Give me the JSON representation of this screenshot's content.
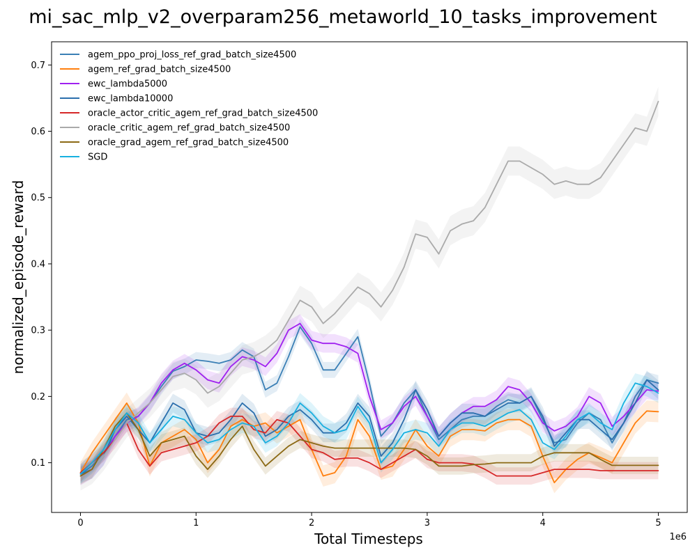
{
  "chart_data": {
    "type": "line",
    "title": "mi_sac_mlp_v2_overparam256_metaworld_10_tasks_improvement",
    "xlabel": "Total Timesteps",
    "ylabel": "normalized_episode_reward",
    "x_offset_label": "1e6",
    "xlim": [
      -0.25,
      5.25
    ],
    "ylim": [
      0.025,
      0.735
    ],
    "xticks": [
      0,
      1,
      2,
      3,
      4,
      5
    ],
    "xtick_labels": [
      "0",
      "1",
      "2",
      "3",
      "4",
      "5"
    ],
    "yticks": [
      0.1,
      0.2,
      0.3,
      0.4,
      0.5,
      0.6,
      0.7
    ],
    "ytick_labels": [
      "0.1",
      "0.2",
      "0.3",
      "0.4",
      "0.5",
      "0.6",
      "0.7"
    ],
    "grid": false,
    "legend_position": "top-left",
    "x": [
      0,
      0.1,
      0.2,
      0.3,
      0.4,
      0.5,
      0.6,
      0.7,
      0.8,
      0.9,
      1.0,
      1.1,
      1.2,
      1.3,
      1.4,
      1.5,
      1.6,
      1.7,
      1.8,
      1.9,
      2.0,
      2.1,
      2.2,
      2.3,
      2.4,
      2.5,
      2.6,
      2.7,
      2.8,
      2.9,
      3.0,
      3.1,
      3.2,
      3.3,
      3.4,
      3.5,
      3.6,
      3.7,
      3.8,
      3.9,
      4.0,
      4.1,
      4.2,
      4.3,
      4.4,
      4.5,
      4.6,
      4.7,
      4.8,
      4.9,
      5.0
    ],
    "series": [
      {
        "name": "agem_ppo_proj_loss_ref_grad_batch_size4500",
        "color": "#3a7fb5",
        "band": 0.012,
        "values": [
          0.083,
          0.095,
          0.115,
          0.14,
          0.165,
          0.17,
          0.19,
          0.215,
          0.238,
          0.245,
          0.255,
          0.253,
          0.25,
          0.255,
          0.27,
          0.26,
          0.21,
          0.22,
          0.26,
          0.305,
          0.28,
          0.24,
          0.24,
          0.265,
          0.29,
          0.22,
          0.14,
          0.16,
          0.19,
          0.21,
          0.17,
          0.135,
          0.15,
          0.165,
          0.17,
          0.17,
          0.185,
          0.195,
          0.19,
          0.2,
          0.165,
          0.13,
          0.135,
          0.16,
          0.175,
          0.165,
          0.13,
          0.16,
          0.2,
          0.225,
          0.22
        ]
      },
      {
        "name": "agem_ref_grad_batch_size4500",
        "color": "#ff7f0e",
        "band": 0.016,
        "values": [
          0.085,
          0.115,
          0.14,
          0.165,
          0.19,
          0.16,
          0.095,
          0.13,
          0.14,
          0.15,
          0.135,
          0.1,
          0.12,
          0.155,
          0.165,
          0.155,
          0.16,
          0.145,
          0.155,
          0.165,
          0.12,
          0.08,
          0.085,
          0.11,
          0.165,
          0.14,
          0.09,
          0.095,
          0.12,
          0.15,
          0.125,
          0.11,
          0.14,
          0.15,
          0.15,
          0.148,
          0.16,
          0.165,
          0.165,
          0.155,
          0.11,
          0.07,
          0.09,
          0.105,
          0.115,
          0.108,
          0.1,
          0.13,
          0.16,
          0.178,
          0.177
        ]
      },
      {
        "name": "ewc_lambda5000",
        "color": "#a020f0",
        "band": 0.014,
        "values": [
          0.08,
          0.09,
          0.11,
          0.14,
          0.16,
          0.17,
          0.19,
          0.22,
          0.24,
          0.25,
          0.24,
          0.225,
          0.22,
          0.245,
          0.26,
          0.255,
          0.245,
          0.265,
          0.3,
          0.31,
          0.285,
          0.28,
          0.28,
          0.275,
          0.265,
          0.2,
          0.15,
          0.16,
          0.185,
          0.2,
          0.17,
          0.14,
          0.16,
          0.175,
          0.185,
          0.185,
          0.195,
          0.215,
          0.21,
          0.19,
          0.16,
          0.148,
          0.155,
          0.17,
          0.2,
          0.19,
          0.155,
          0.17,
          0.19,
          0.21,
          0.208
        ]
      },
      {
        "name": "ewc_lambda10000",
        "color": "#2b6fad",
        "band": 0.014,
        "values": [
          0.083,
          0.09,
          0.11,
          0.15,
          0.17,
          0.15,
          0.13,
          0.16,
          0.19,
          0.18,
          0.145,
          0.14,
          0.145,
          0.165,
          0.19,
          0.175,
          0.14,
          0.15,
          0.17,
          0.18,
          0.165,
          0.145,
          0.145,
          0.16,
          0.19,
          0.17,
          0.11,
          0.13,
          0.165,
          0.21,
          0.18,
          0.14,
          0.16,
          0.175,
          0.175,
          0.17,
          0.18,
          0.19,
          0.19,
          0.2,
          0.17,
          0.125,
          0.145,
          0.165,
          0.165,
          0.15,
          0.135,
          0.16,
          0.19,
          0.225,
          0.21
        ]
      },
      {
        "name": "oracle_actor_critic_agem_ref_grad_batch_size4500",
        "color": "#d62728",
        "band": 0.013,
        "values": [
          0.085,
          0.1,
          0.115,
          0.135,
          0.16,
          0.12,
          0.095,
          0.115,
          0.12,
          0.125,
          0.13,
          0.14,
          0.16,
          0.17,
          0.17,
          0.15,
          0.145,
          0.165,
          0.16,
          0.14,
          0.12,
          0.115,
          0.105,
          0.107,
          0.107,
          0.1,
          0.09,
          0.1,
          0.11,
          0.12,
          0.105,
          0.1,
          0.1,
          0.1,
          0.098,
          0.09,
          0.08,
          0.08,
          0.08,
          0.08,
          0.085,
          0.09,
          0.09,
          0.09,
          0.09,
          0.088,
          0.088,
          0.088,
          0.088,
          0.088,
          0.088
        ]
      },
      {
        "name": "oracle_critic_agem_ref_grad_batch_size4500",
        "color": "#aaaaaa",
        "band": 0.022,
        "values": [
          0.08,
          0.09,
          0.11,
          0.135,
          0.16,
          0.175,
          0.19,
          0.21,
          0.23,
          0.235,
          0.225,
          0.205,
          0.215,
          0.235,
          0.255,
          0.26,
          0.27,
          0.285,
          0.315,
          0.345,
          0.335,
          0.31,
          0.325,
          0.345,
          0.365,
          0.355,
          0.335,
          0.36,
          0.395,
          0.445,
          0.44,
          0.415,
          0.45,
          0.46,
          0.465,
          0.485,
          0.52,
          0.555,
          0.555,
          0.545,
          0.535,
          0.52,
          0.525,
          0.52,
          0.52,
          0.53,
          0.555,
          0.58,
          0.605,
          0.6,
          0.645
        ]
      },
      {
        "name": "oracle_grad_agem_ref_grad_batch_size4500",
        "color": "#8b6914",
        "band": 0.013,
        "values": [
          0.08,
          0.09,
          0.12,
          0.155,
          0.175,
          0.15,
          0.11,
          0.13,
          0.135,
          0.14,
          0.11,
          0.09,
          0.11,
          0.135,
          0.155,
          0.12,
          0.095,
          0.11,
          0.125,
          0.135,
          0.13,
          0.125,
          0.122,
          0.122,
          0.122,
          0.122,
          0.122,
          0.122,
          0.122,
          0.12,
          0.11,
          0.095,
          0.095,
          0.095,
          0.097,
          0.098,
          0.1,
          0.1,
          0.1,
          0.1,
          0.11,
          0.115,
          0.115,
          0.115,
          0.115,
          0.105,
          0.096,
          0.096,
          0.096,
          0.096,
          0.096
        ]
      },
      {
        "name": "SGD",
        "color": "#17b0e0",
        "band": 0.015,
        "values": [
          0.083,
          0.1,
          0.12,
          0.15,
          0.175,
          0.16,
          0.13,
          0.15,
          0.17,
          0.165,
          0.145,
          0.13,
          0.135,
          0.15,
          0.16,
          0.155,
          0.13,
          0.14,
          0.16,
          0.19,
          0.175,
          0.155,
          0.145,
          0.15,
          0.185,
          0.16,
          0.1,
          0.12,
          0.145,
          0.15,
          0.145,
          0.125,
          0.15,
          0.16,
          0.16,
          0.155,
          0.165,
          0.175,
          0.18,
          0.165,
          0.13,
          0.12,
          0.14,
          0.165,
          0.175,
          0.16,
          0.15,
          0.19,
          0.22,
          0.215,
          0.205
        ]
      }
    ]
  }
}
